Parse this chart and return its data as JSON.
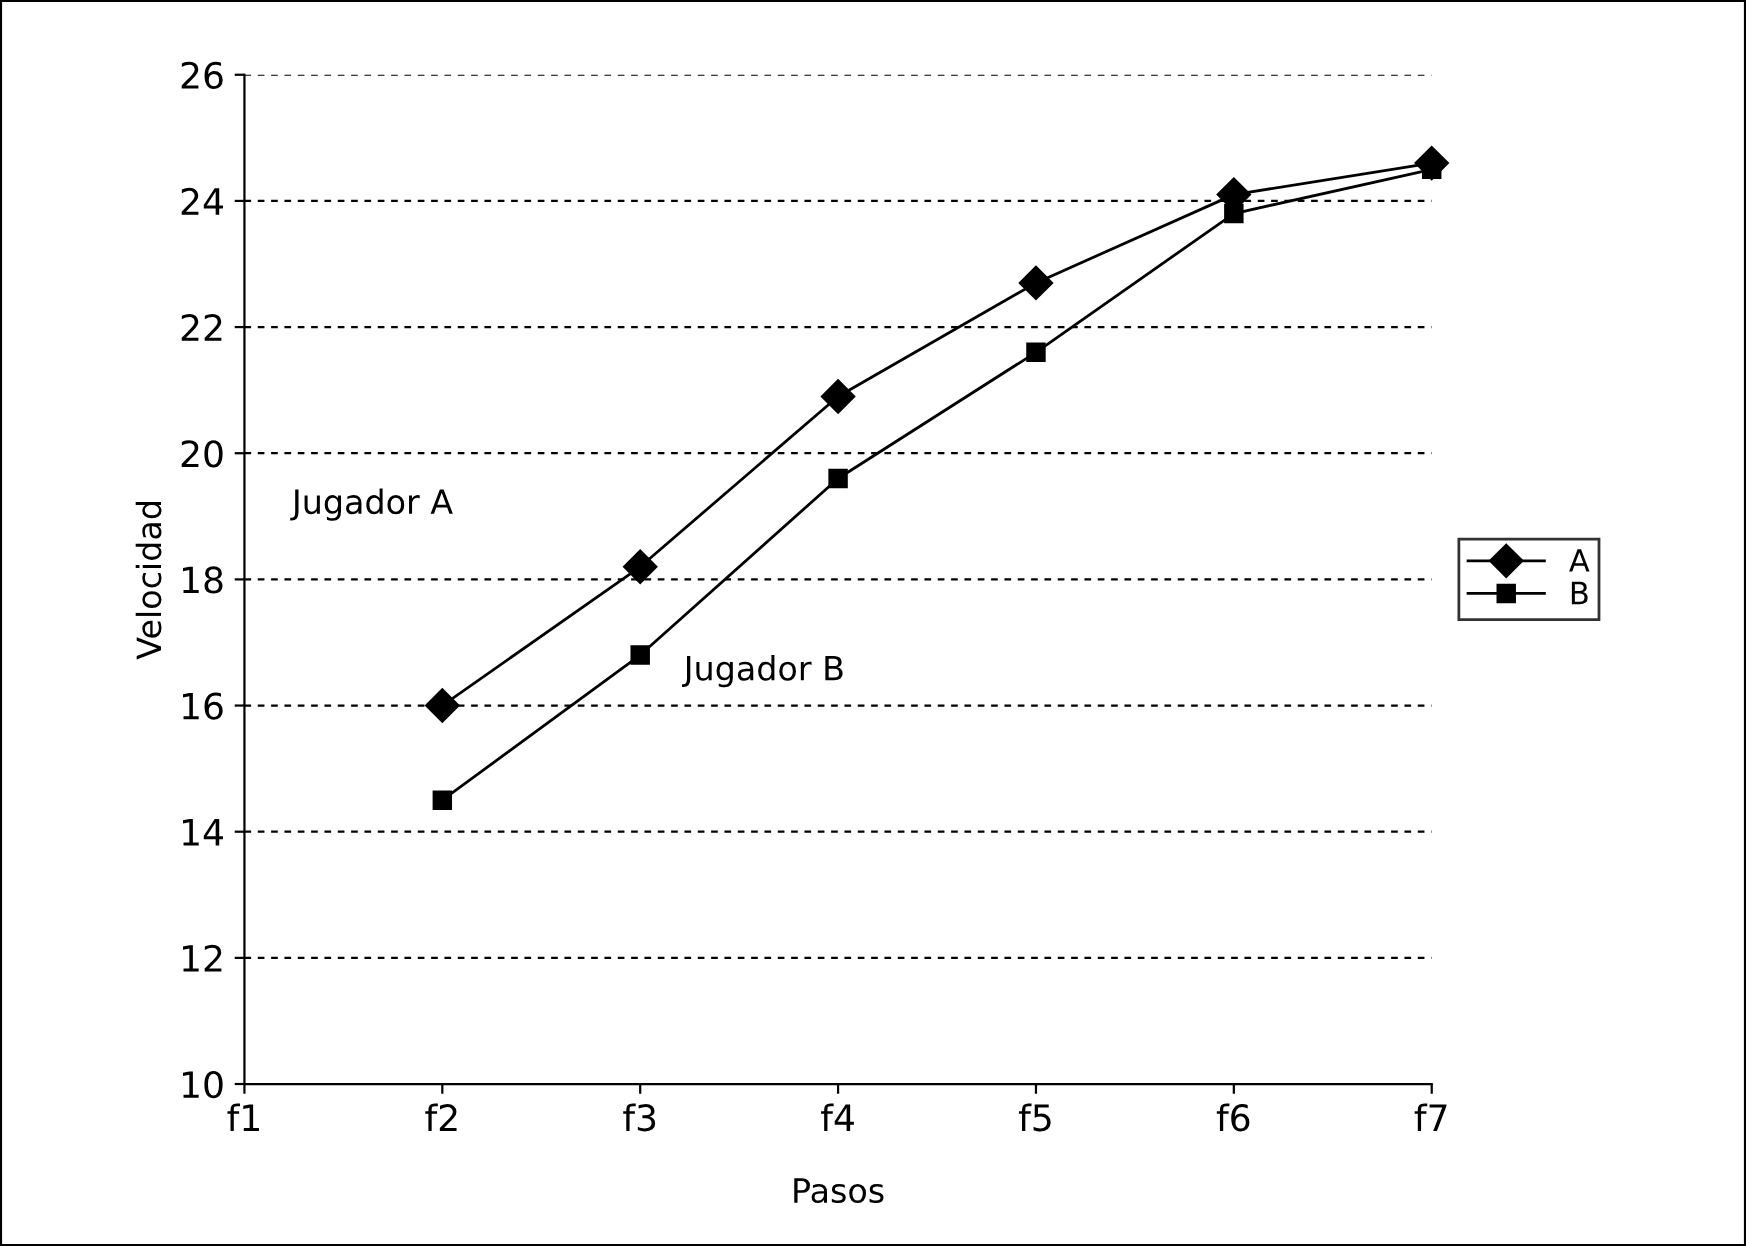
{
  "chart_data": {
    "type": "line",
    "xlabel": "Pasos",
    "ylabel": "Velocidad",
    "categories": [
      "f1",
      "f2",
      "f3",
      "f4",
      "f5",
      "f6",
      "f7"
    ],
    "series": [
      {
        "name": "A",
        "color": "#000000",
        "marker": "diamond",
        "values": [
          null,
          16.0,
          18.2,
          20.9,
          22.7,
          24.1,
          24.6
        ]
      },
      {
        "name": "B",
        "color": "#000000",
        "marker": "square",
        "values": [
          null,
          14.5,
          16.8,
          19.6,
          21.6,
          23.8,
          24.5
        ]
      }
    ],
    "ylim": [
      10,
      26
    ],
    "yticks": [
      10,
      12,
      14,
      16,
      18,
      20,
      22,
      24,
      26
    ],
    "grid": "y",
    "legend": "right",
    "line_style": "solid",
    "annotations": [
      "Jugador A",
      "Jugador B"
    ]
  }
}
